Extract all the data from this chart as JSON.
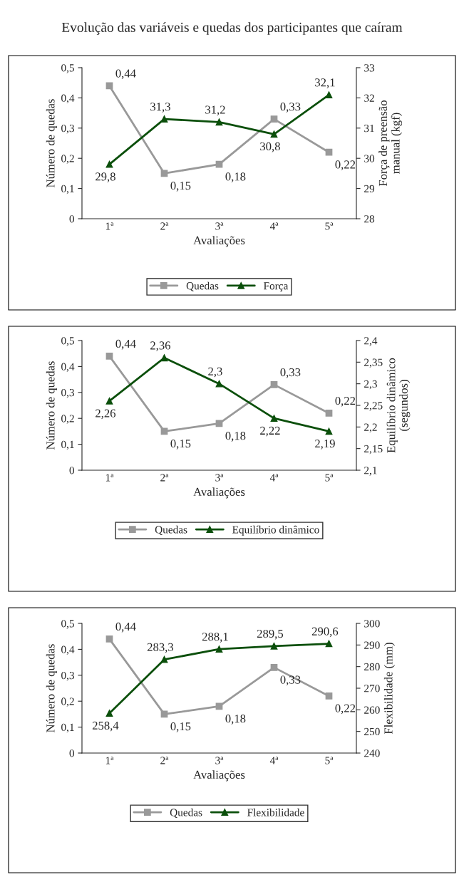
{
  "chart_data": [
    {
      "type": "line",
      "title": "Evolução das variáveis e quedas dos participantes que caíram",
      "categories": [
        "1ª",
        "2ª",
        "3ª",
        "4ª",
        "5ª"
      ],
      "xlabel": "Avaliações",
      "ylabel": "Número de quedas",
      "y2label": "Força de preensão\nmanual (kgf)",
      "ylim": [
        0,
        0.5
      ],
      "yticks": [
        0,
        {
          "value": 0.1,
          "label": "0,1"
        },
        {
          "value": 0.2,
          "label": "0,2"
        },
        {
          "value": 0.3,
          "label": "0,3"
        },
        {
          "value": 0.4,
          "label": "0,4"
        },
        {
          "value": 0.5,
          "label": "0,5"
        }
      ],
      "y2lim": [
        28,
        33
      ],
      "y2ticks": [
        28,
        29,
        30,
        31,
        32,
        33
      ],
      "legend": "bottom",
      "grid": false,
      "series": [
        {
          "name": "Quedas",
          "color": "#999999",
          "marker": "square",
          "values": [
            0.44,
            0.15,
            0.18,
            0.33,
            0.22
          ],
          "value_labels": [
            "0,44",
            "0,15",
            "0,18",
            "0,33",
            "0,22"
          ]
        },
        {
          "name": "Força",
          "color": "#0b4f0b",
          "marker": "triangle",
          "axis": "y2",
          "values": [
            29.8,
            31.3,
            31.2,
            30.8,
            32.1
          ],
          "value_labels": [
            "29,8",
            "31,3",
            "31,2",
            "30,8",
            "32,1"
          ]
        }
      ]
    },
    {
      "type": "line",
      "categories": [
        "1ª",
        "2ª",
        "3ª",
        "4ª",
        "5ª"
      ],
      "xlabel": "Avaliações",
      "ylabel": "Número de quedas",
      "y2label": "Equilíbrio dinâmico\n(segundos)",
      "ylim": [
        0,
        0.5
      ],
      "yticks": [
        0,
        {
          "value": 0.1,
          "label": "0,1"
        },
        {
          "value": 0.2,
          "label": "0,2"
        },
        {
          "value": 0.3,
          "label": "0,3"
        },
        {
          "value": 0.4,
          "label": "0,4"
        },
        {
          "value": 0.5,
          "label": "0,5"
        }
      ],
      "y2lim": [
        2.1,
        2.4
      ],
      "y2ticks": [
        {
          "value": 2.1,
          "label": "2,1"
        },
        {
          "value": 2.15,
          "label": "2,15"
        },
        {
          "value": 2.2,
          "label": "2,2"
        },
        {
          "value": 2.25,
          "label": "2,25"
        },
        {
          "value": 2.3,
          "label": "2,3"
        },
        {
          "value": 2.35,
          "label": "2,35"
        },
        {
          "value": 2.4,
          "label": "2,4"
        }
      ],
      "legend": "bottom",
      "grid": false,
      "series": [
        {
          "name": "Quedas",
          "color": "#999999",
          "marker": "square",
          "values": [
            0.44,
            0.15,
            0.18,
            0.33,
            0.22
          ],
          "value_labels": [
            "0,44",
            "0,15",
            "0,18",
            "0,33",
            "0,22"
          ]
        },
        {
          "name": "Equilíbrio dinâmico",
          "color": "#0b4f0b",
          "marker": "triangle",
          "axis": "y2",
          "values": [
            2.26,
            2.36,
            2.3,
            2.22,
            2.19
          ],
          "value_labels": [
            "2,26",
            "2,36",
            "2,3",
            "2,22",
            "2,19"
          ]
        }
      ]
    },
    {
      "type": "line",
      "categories": [
        "1ª",
        "2ª",
        "3ª",
        "4ª",
        "5ª"
      ],
      "xlabel": "Avaliações",
      "ylabel": "Número de quedas",
      "y2label": "Flexibilidade (mm)",
      "ylim": [
        0,
        0.5
      ],
      "yticks": [
        0,
        {
          "value": 0.1,
          "label": "0,1"
        },
        {
          "value": 0.2,
          "label": "0,2"
        },
        {
          "value": 0.3,
          "label": "0,3"
        },
        {
          "value": 0.4,
          "label": "0,4"
        },
        {
          "value": 0.5,
          "label": "0,5"
        }
      ],
      "y2lim": [
        240,
        300
      ],
      "y2ticks": [
        240,
        250,
        260,
        270,
        280,
        290,
        300
      ],
      "legend": "bottom",
      "grid": false,
      "series": [
        {
          "name": "Quedas",
          "color": "#999999",
          "marker": "square",
          "values": [
            0.44,
            0.15,
            0.18,
            0.33,
            0.22
          ],
          "value_labels": [
            "0,44",
            "0,15",
            "0,18",
            "0,33",
            "0,22"
          ]
        },
        {
          "name": "Flexibilidade",
          "color": "#0b4f0b",
          "marker": "triangle",
          "axis": "y2",
          "values": [
            258.4,
            283.3,
            288.1,
            289.5,
            290.6
          ],
          "value_labels": [
            "258,4",
            "283,3",
            "288,1",
            "289,5",
            "290,6"
          ]
        }
      ]
    }
  ]
}
